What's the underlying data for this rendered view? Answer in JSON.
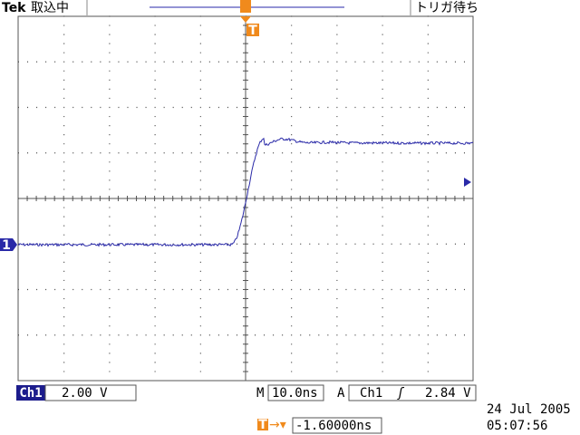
{
  "header": {
    "brand": "Tek",
    "status": "取込中",
    "trigger_status": "トリガ待ち",
    "trigger_marker": "T"
  },
  "channel_marker": "1",
  "status_bar": {
    "channel": "Ch1",
    "volts_per_div": "2.00 V",
    "time_label": "M",
    "time_per_div": "10.0ns",
    "trigger_label": "A",
    "trigger_channel": "Ch1",
    "trigger_slope": "ʃ",
    "trigger_level": "2.84 V"
  },
  "footer": {
    "trigger_marker": "T",
    "trigger_arrow": "→▾",
    "trigger_position": "-1.60000ns",
    "date": "24 Jul   2005",
    "time": "05:07:56"
  }
}
